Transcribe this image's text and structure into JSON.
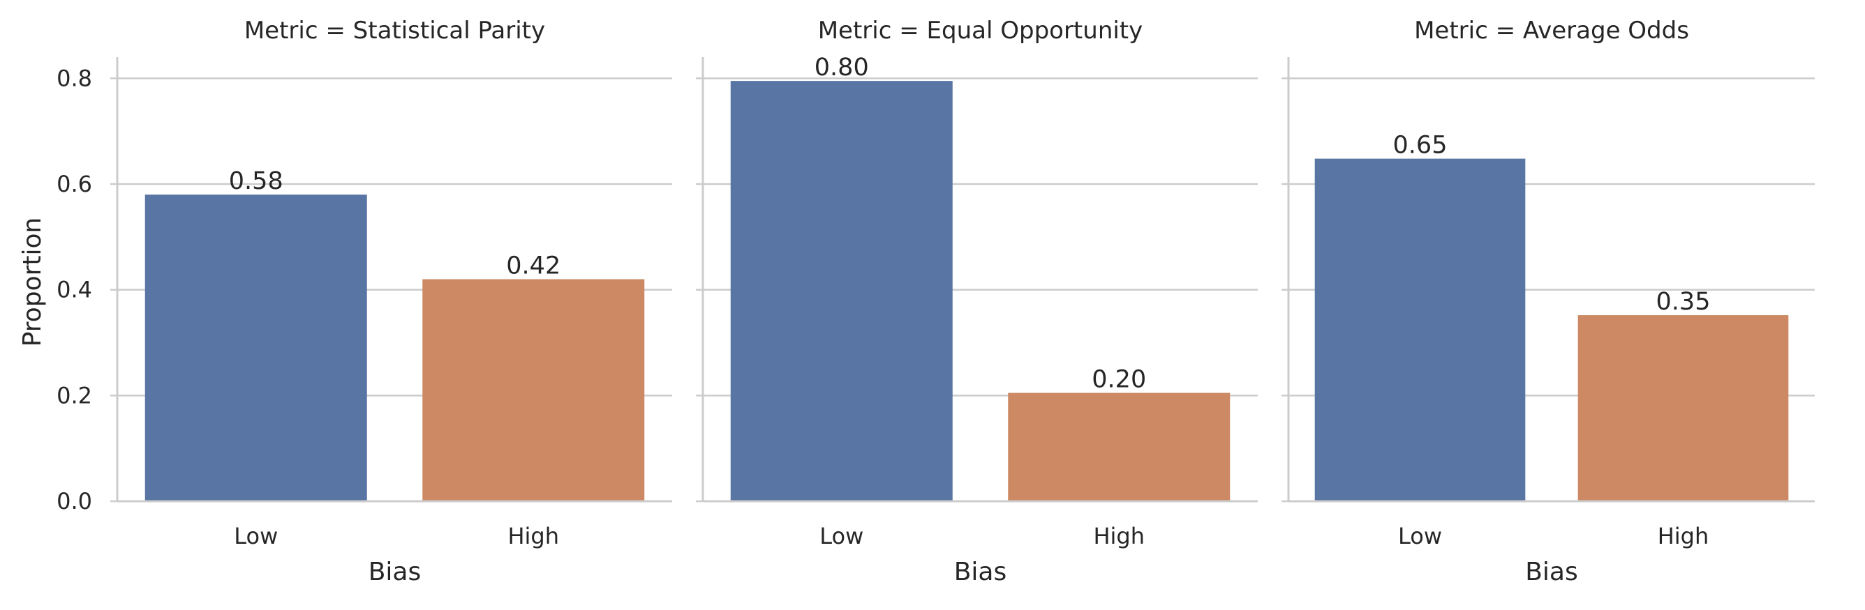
{
  "chart_data": {
    "type": "bar",
    "facet_by": "Metric",
    "xlabel": "Bias",
    "ylabel": "Proportion",
    "categories": [
      "Low",
      "High"
    ],
    "ylim": [
      0,
      0.84
    ],
    "yticks": [
      0.0,
      0.2,
      0.4,
      0.6,
      0.8
    ],
    "ytick_labels": [
      "0.0",
      "0.2",
      "0.4",
      "0.6",
      "0.8"
    ],
    "grid": "horizontal",
    "colors": {
      "Low": "#5975a4",
      "High": "#cc8963"
    },
    "facets": [
      {
        "title": "Metric = Statistical Parity",
        "values": [
          0.58,
          0.42
        ],
        "value_labels": [
          "0.58",
          "0.42"
        ]
      },
      {
        "title": "Metric = Equal Opportunity",
        "values": [
          0.795,
          0.205
        ],
        "value_labels": [
          "0.80",
          "0.20"
        ]
      },
      {
        "title": "Metric = Average Odds",
        "values": [
          0.648,
          0.352
        ],
        "value_labels": [
          "0.65",
          "0.35"
        ]
      }
    ]
  }
}
